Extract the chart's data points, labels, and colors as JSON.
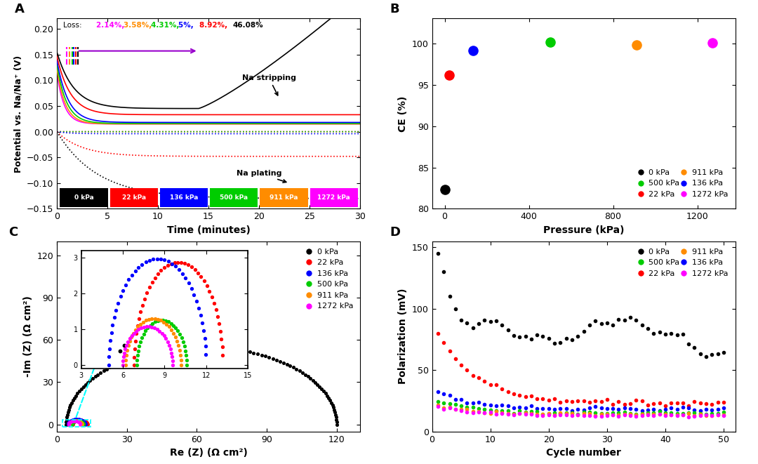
{
  "colors_list": [
    "#000000",
    "#FF0000",
    "#0000FF",
    "#00CC00",
    "#FF8C00",
    "#FF00FF"
  ],
  "panel_A": {
    "xlabel": "Time (minutes)",
    "ylabel": "Potential vs. Na/Na⁺ (V)",
    "loss_text": "Loss: ",
    "loss_values": [
      "2.14%",
      "3.58%",
      "4.31%",
      "5%",
      "8.92%",
      "46.08%"
    ],
    "loss_colors": [
      "#FF00FF",
      "#FF8C00",
      "#00CC00",
      "#0000FF",
      "#FF0000",
      "#000000"
    ],
    "xlim": [
      0,
      30
    ],
    "ylim": [
      -0.15,
      0.22
    ],
    "legend_labels": [
      "0 kPa",
      "22 kPa",
      "136 kPa",
      "500 kPa",
      "911 kPa",
      "1272 kPa"
    ],
    "legend_bg_colors": [
      "#000000",
      "#FF0000",
      "#0000FF",
      "#00CC00",
      "#FF8C00",
      "#FF00FF"
    ]
  },
  "panel_B": {
    "xlabel": "Pressure (kPa)",
    "ylabel": "CE (%)",
    "xlim": [
      -60,
      1380
    ],
    "ylim": [
      80,
      103
    ],
    "x_data": [
      0,
      22,
      136,
      500,
      911,
      1272
    ],
    "y_data": [
      82.3,
      96.2,
      99.1,
      100.15,
      99.85,
      100.05
    ],
    "colors": [
      "#000000",
      "#FF0000",
      "#0000FF",
      "#00CC00",
      "#FF8C00",
      "#FF00FF"
    ],
    "xticks": [
      0,
      400,
      800,
      1200
    ],
    "yticks": [
      80,
      85,
      90,
      95,
      100
    ]
  },
  "panel_C": {
    "xlabel": "Re (Z) (Ω cm²)",
    "ylabel": "-Im (Z) (Ω cm²)",
    "xlim": [
      0,
      130
    ],
    "ylim": [
      -5,
      130
    ],
    "xticks": [
      0,
      30,
      60,
      90,
      120
    ],
    "yticks": [
      0,
      30,
      60,
      90,
      120
    ]
  },
  "panel_D": {
    "xlabel": "Cycle number",
    "ylabel": "Polarization (mV)",
    "xlim": [
      0,
      52
    ],
    "ylim": [
      0,
      155
    ],
    "xticks": [
      0,
      10,
      20,
      30,
      40,
      50
    ],
    "yticks": [
      0,
      50,
      100,
      150
    ]
  }
}
